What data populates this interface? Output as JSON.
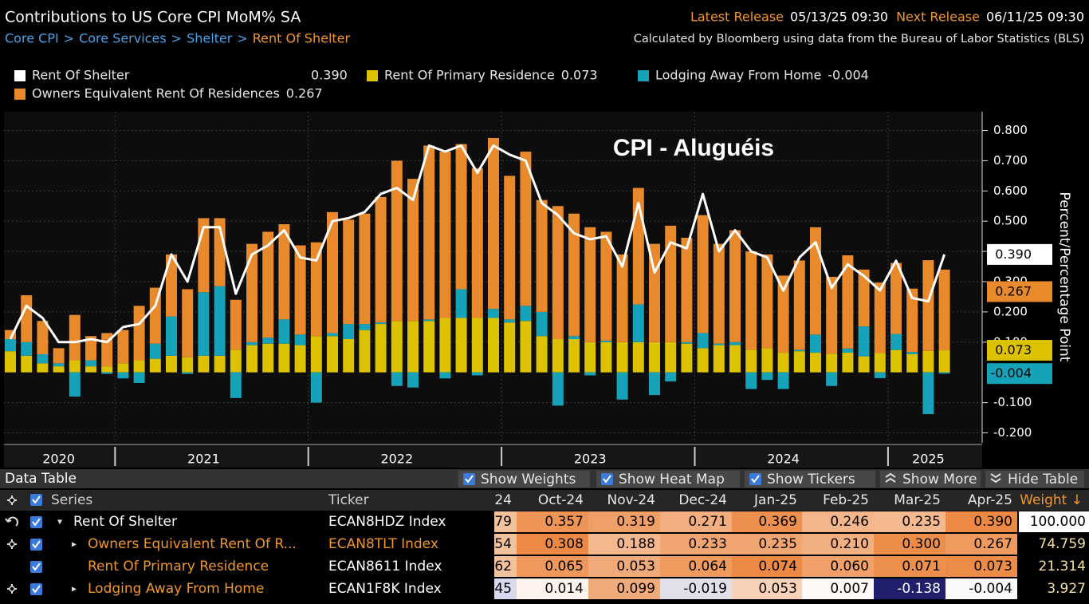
{
  "header": {
    "title": "Contributions to US Core CPI MoM% SA",
    "breadcrumb": [
      "Core CPI",
      "Core Services",
      "Shelter",
      "Rent Of Shelter"
    ],
    "latest_release_label": "Latest Release",
    "latest_release": "05/13/25 09:30",
    "next_release_label": "Next Release",
    "next_release": "06/11/25 09:30",
    "source": "Calculated by Bloomberg using data from the Bureau of Labor Statistics (BLS)"
  },
  "chart_data": {
    "type": "bar",
    "stacked": true,
    "annotation": "CPI - Aluguéis",
    "y_label": "Percent/Percentage Point",
    "grid": true,
    "categories": [
      null,
      null,
      null,
      "2020",
      null,
      null,
      null,
      null,
      null,
      null,
      null,
      null,
      "2021",
      null,
      null,
      null,
      null,
      null,
      null,
      null,
      null,
      null,
      null,
      null,
      "2022",
      null,
      null,
      null,
      null,
      null,
      null,
      null,
      null,
      null,
      null,
      null,
      "2023",
      null,
      null,
      null,
      null,
      null,
      null,
      null,
      null,
      null,
      null,
      null,
      "2024",
      null,
      null,
      null,
      null,
      null,
      null,
      null,
      null,
      "2025",
      null
    ],
    "ylim": [
      -0.233,
      0.862
    ],
    "yticks": [
      {
        "value": -0.2,
        "label": "-0.200"
      },
      {
        "value": -0.1,
        "label": "-0.100"
      },
      {
        "value": 0.1,
        "label": "0.100"
      },
      {
        "value": 0.2,
        "label": "0.200"
      },
      {
        "value": 0.3,
        "label": "0.300"
      },
      {
        "value": 0.4,
        "label": "0.400"
      },
      {
        "value": 0.5,
        "label": "0.500"
      },
      {
        "value": 0.6,
        "label": "0.600"
      },
      {
        "value": 0.7,
        "label": "0.700"
      },
      {
        "value": 0.8,
        "label": "0.800"
      }
    ],
    "series": [
      {
        "name": "Rent Of Shelter",
        "type": "line",
        "color": "#ffffff",
        "last_label": "0.390",
        "values": [
          0.11,
          0.22,
          0.18,
          0.1,
          0.1,
          0.11,
          0.1,
          0.15,
          0.16,
          0.22,
          0.39,
          0.3,
          0.48,
          0.48,
          0.26,
          0.39,
          0.42,
          0.47,
          0.38,
          0.37,
          0.5,
          0.51,
          0.53,
          0.59,
          0.61,
          0.57,
          0.75,
          0.73,
          0.75,
          0.66,
          0.75,
          0.72,
          0.7,
          0.56,
          0.52,
          0.46,
          0.44,
          0.45,
          0.35,
          0.56,
          0.33,
          0.43,
          0.41,
          0.59,
          0.4,
          0.47,
          0.4,
          0.38,
          0.27,
          0.38,
          0.43,
          0.279,
          0.357,
          0.319,
          0.271,
          0.369,
          0.246,
          0.235,
          0.39
        ]
      },
      {
        "name": "Rent Of Primary Residence",
        "type": "bar",
        "color": "#dcc200",
        "last_label": "0.073",
        "values": [
          0.07,
          0.055,
          0.03,
          0.02,
          0.04,
          0.02,
          0.02,
          0.03,
          0.04,
          0.045,
          0.055,
          0.05,
          0.055,
          0.055,
          0.075,
          0.09,
          0.095,
          0.095,
          0.09,
          0.12,
          0.12,
          0.11,
          0.14,
          0.16,
          0.17,
          0.17,
          0.17,
          0.18,
          0.18,
          0.18,
          0.18,
          0.165,
          0.17,
          0.12,
          0.11,
          0.11,
          0.1,
          0.1,
          0.1,
          0.1,
          0.1,
          0.1,
          0.095,
          0.08,
          0.09,
          0.09,
          0.075,
          0.08,
          0.065,
          0.07,
          0.065,
          0.062,
          0.065,
          0.053,
          0.064,
          0.074,
          0.06,
          0.071,
          0.073
        ]
      },
      {
        "name": "Lodging Away From Home",
        "type": "bar",
        "color": "#16a2b8",
        "last_label": "-0.004",
        "values": [
          0.04,
          0.045,
          0.03,
          0.01,
          -0.08,
          0.02,
          -0.005,
          -0.02,
          -0.035,
          0.05,
          0.13,
          -0.005,
          0.21,
          0.23,
          -0.085,
          0.01,
          0.02,
          0.08,
          0.035,
          -0.1,
          0.01,
          0.05,
          0.02,
          0.005,
          -0.045,
          -0.05,
          0.005,
          -0.02,
          0.095,
          -0.01,
          0.03,
          0.01,
          0.05,
          0.08,
          -0.11,
          0.01,
          -0.01,
          0.005,
          -0.09,
          0.125,
          -0.075,
          -0.03,
          0.005,
          0.05,
          0.005,
          0.01,
          -0.055,
          -0.025,
          -0.055,
          0.005,
          0.06,
          -0.045,
          0.014,
          0.099,
          -0.019,
          0.053,
          0.007,
          -0.138,
          -0.004
        ]
      },
      {
        "name": "Owners Equivalent Rent Of Residences",
        "type": "bar",
        "color": "#e8892b",
        "last_label": "0.267",
        "values": [
          0.03,
          0.155,
          0.11,
          0.05,
          0.15,
          0.08,
          0.11,
          0.11,
          0.18,
          0.185,
          0.205,
          0.225,
          0.245,
          0.225,
          0.165,
          0.325,
          0.35,
          0.315,
          0.295,
          0.31,
          0.4,
          0.345,
          0.365,
          0.415,
          0.53,
          0.47,
          0.575,
          0.55,
          0.48,
          0.495,
          0.565,
          0.475,
          0.51,
          0.37,
          0.44,
          0.405,
          0.38,
          0.36,
          0.29,
          0.385,
          0.325,
          0.385,
          0.345,
          0.39,
          0.33,
          0.37,
          0.325,
          0.31,
          0.255,
          0.295,
          0.355,
          0.254,
          0.308,
          0.188,
          0.233,
          0.235,
          0.21,
          0.3,
          0.267
        ]
      }
    ]
  },
  "table": {
    "title": "Data Table",
    "buttons": [
      "Show Weights",
      "Show Heat Map",
      "Show Tickers",
      "Show More",
      "Hide Table"
    ],
    "columns": [
      "Series",
      "Ticker",
      "24",
      "Oct-24",
      "Nov-24",
      "Dec-24",
      "Jan-25",
      "Feb-25",
      "Mar-25",
      "Apr-25",
      "Weight ↓"
    ],
    "rows": [
      {
        "series": "Rent Of Shelter",
        "ticker": "ECAN8HDZ Index",
        "values": [
          "79",
          "0.357",
          "0.319",
          "0.271",
          "0.369",
          "0.246",
          "0.235",
          "0.390"
        ],
        "weight": "100.000"
      },
      {
        "series": "Owners Equivalent Rent Of R...",
        "ticker": "ECAN8TLT Index",
        "values": [
          "54",
          "0.308",
          "0.188",
          "0.233",
          "0.235",
          "0.210",
          "0.300",
          "0.267"
        ],
        "weight": "74.759"
      },
      {
        "series": "Rent Of Primary Residence",
        "ticker": "ECAN8611 Index",
        "values": [
          "62",
          "0.065",
          "0.053",
          "0.064",
          "0.074",
          "0.060",
          "0.071",
          "0.073"
        ],
        "weight": "21.314"
      },
      {
        "series": "Lodging Away From Home",
        "ticker": "ECAN1F8K Index",
        "values": [
          "45",
          "0.014",
          "0.099",
          "-0.019",
          "0.053",
          "0.007",
          "-0.138",
          "-0.004"
        ],
        "weight": "3.927"
      }
    ]
  }
}
